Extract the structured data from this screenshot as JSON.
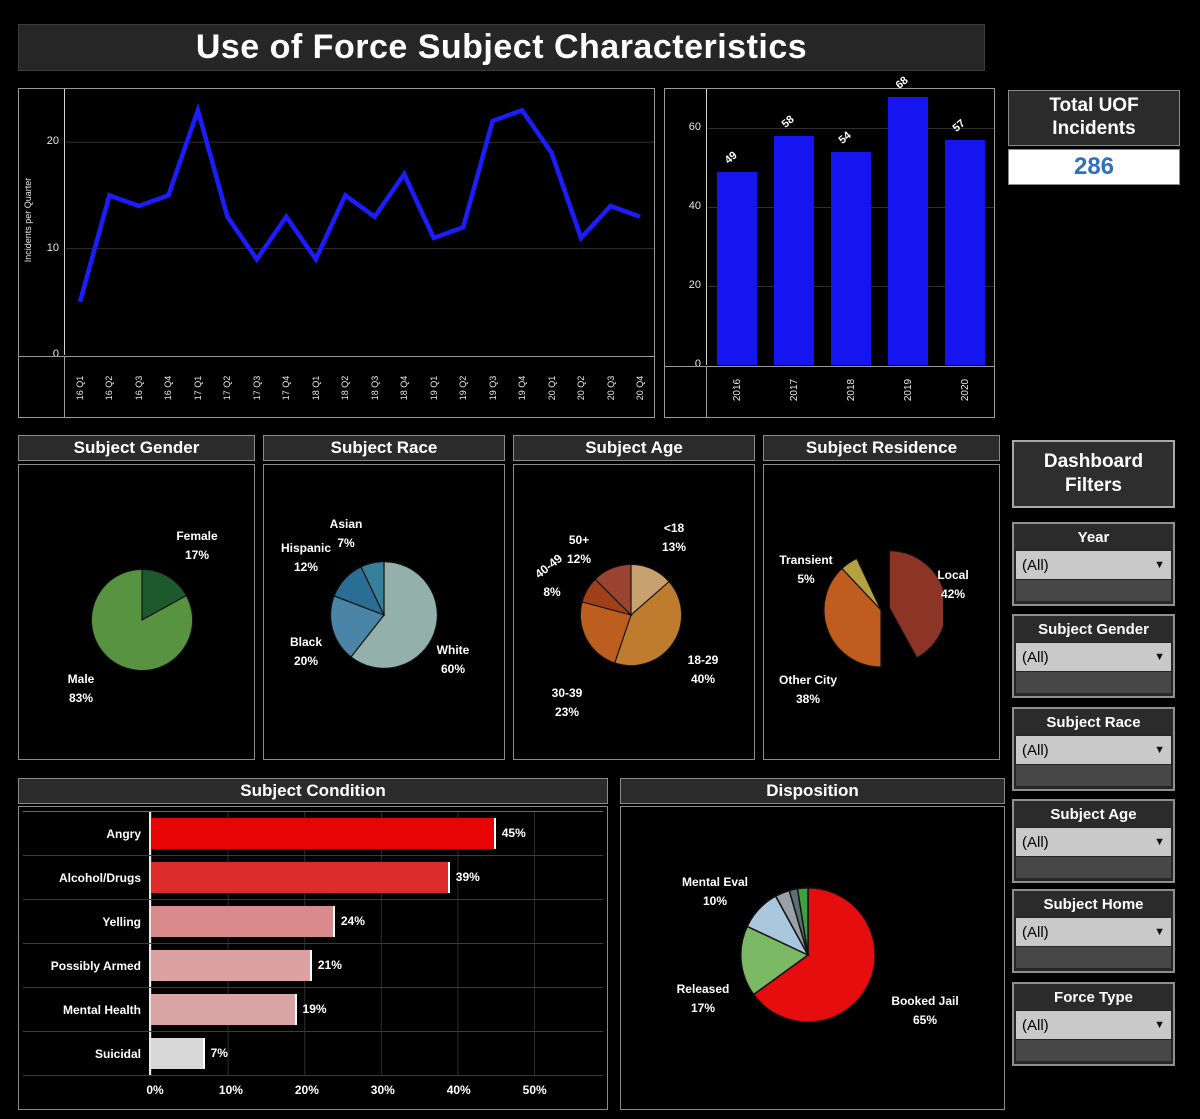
{
  "title": "Use of Force Subject Characteristics",
  "kpi": {
    "label": "Total UOF Incidents",
    "value": "286"
  },
  "filters": {
    "header": "Dashboard Filters",
    "items": [
      {
        "label": "Year",
        "value": "(All)"
      },
      {
        "label": "Subject Gender",
        "value": "(All)"
      },
      {
        "label": "Subject Race",
        "value": "(All)"
      },
      {
        "label": "Subject Age",
        "value": "(All)"
      },
      {
        "label": "Subject Home",
        "value": "(All)"
      },
      {
        "label": "Force Type",
        "value": "(All)"
      }
    ]
  },
  "chart_data": [
    {
      "id": "quarterly",
      "type": "line",
      "title": "",
      "ylabel": "Incidents per Quarter",
      "x": [
        "16 Q1",
        "16 Q2",
        "16 Q3",
        "16 Q4",
        "17 Q1",
        "17 Q2",
        "17 Q3",
        "17 Q4",
        "18 Q1",
        "18 Q2",
        "18 Q3",
        "18 Q4",
        "19 Q1",
        "19 Q2",
        "19 Q3",
        "19 Q4",
        "20 Q1",
        "20 Q2",
        "20 Q3",
        "20 Q4"
      ],
      "values": [
        5,
        15,
        14,
        15,
        23,
        13,
        9,
        13,
        9,
        15,
        13,
        17,
        11,
        12,
        22,
        23,
        19,
        11,
        14,
        13
      ],
      "ylim": [
        0,
        25
      ],
      "yticks": [
        0,
        10,
        20
      ],
      "grid": true,
      "line_color": "#1c1cff"
    },
    {
      "id": "annual",
      "type": "bar",
      "title": "",
      "categories": [
        "2016",
        "2017",
        "2018",
        "2019",
        "2020"
      ],
      "values": [
        49,
        58,
        54,
        68,
        57
      ],
      "ylim": [
        0,
        70
      ],
      "yticks": [
        0,
        20,
        40,
        60
      ],
      "grid": true,
      "bar_color": "#1515f2"
    },
    {
      "id": "gender",
      "type": "pie",
      "title": "Subject Gender",
      "slices": [
        {
          "label": "Female",
          "pct": 17,
          "pct_label": "17%",
          "color": "#1c5a2e"
        },
        {
          "label": "Male",
          "pct": 83,
          "pct_label": "83%",
          "color": "#579340"
        }
      ]
    },
    {
      "id": "race",
      "type": "pie",
      "title": "Subject Race",
      "slices": [
        {
          "label": "White",
          "pct": 60,
          "pct_label": "60%",
          "color": "#94b0aa"
        },
        {
          "label": "Black",
          "pct": 20,
          "pct_label": "20%",
          "color": "#4a84a6"
        },
        {
          "label": "Hispanic",
          "pct": 12,
          "pct_label": "12%",
          "color": "#2b6e94"
        },
        {
          "label": "Asian",
          "pct": 7,
          "pct_label": "7%",
          "color": "#37809b"
        }
      ]
    },
    {
      "id": "age",
      "type": "pie",
      "title": "Subject Age",
      "slices": [
        {
          "label": "<18",
          "pct": 13,
          "pct_label": "13%",
          "color": "#c8a26e"
        },
        {
          "label": "18-29",
          "pct": 40,
          "pct_label": "40%",
          "color": "#c07c2e"
        },
        {
          "label": "30-39",
          "pct": 23,
          "pct_label": "23%",
          "color": "#bc5f1e"
        },
        {
          "label": "40-49",
          "pct": 8,
          "pct_label": "8%",
          "color": "#a04018"
        },
        {
          "label": "50+",
          "pct": 12,
          "pct_label": "12%",
          "color": "#9a4430"
        }
      ]
    },
    {
      "id": "residence",
      "type": "pie",
      "title": "Subject Residence",
      "slices": [
        {
          "label": "Local",
          "pct": 42,
          "pct_label": "42%",
          "color": "#8c3425",
          "exploded": true
        },
        {
          "label": null,
          "pct": 8,
          "color": null
        },
        {
          "label": "Other City",
          "pct": 38,
          "pct_label": "38%",
          "color": "#bf5c1e"
        },
        {
          "label": "Transient",
          "pct": 5,
          "pct_label": "5%",
          "color": "#b3a23f"
        },
        {
          "label": null,
          "pct": 7,
          "color": null
        }
      ]
    },
    {
      "id": "condition",
      "type": "barh",
      "title": "Subject Condition",
      "categories": [
        "Angry",
        "Alcohol/Drugs",
        "Yelling",
        "Possibly Armed",
        "Mental Health",
        "Suicidal"
      ],
      "values": [
        45,
        39,
        24,
        21,
        19,
        7
      ],
      "value_labels": [
        "45%",
        "39%",
        "24%",
        "21%",
        "19%",
        "7%"
      ],
      "bar_colors": [
        "#e60404",
        "#dd2c2c",
        "#d98b8b",
        "#dca1a1",
        "#daa4a4",
        "#d8d8d8"
      ],
      "xlim": [
        0,
        50
      ],
      "xticks": [
        "0%",
        "10%",
        "20%",
        "30%",
        "40%",
        "50%"
      ]
    },
    {
      "id": "disposition",
      "type": "pie",
      "title": "Disposition",
      "slices": [
        {
          "label": "Booked Jail",
          "pct": 65,
          "pct_label": "65%",
          "color": "#e50d0d"
        },
        {
          "label": "Released",
          "pct": 17,
          "pct_label": "17%",
          "color": "#7cb964"
        },
        {
          "label": "Mental Eval",
          "pct": 10,
          "pct_label": "10%",
          "color": "#aac7dd"
        },
        {
          "label": null,
          "pct": 3.5,
          "color": "#97a1a7"
        },
        {
          "label": null,
          "pct": 2,
          "color": "#5c6e78"
        },
        {
          "label": null,
          "pct": 2.5,
          "color": "#3da23d"
        }
      ]
    }
  ]
}
